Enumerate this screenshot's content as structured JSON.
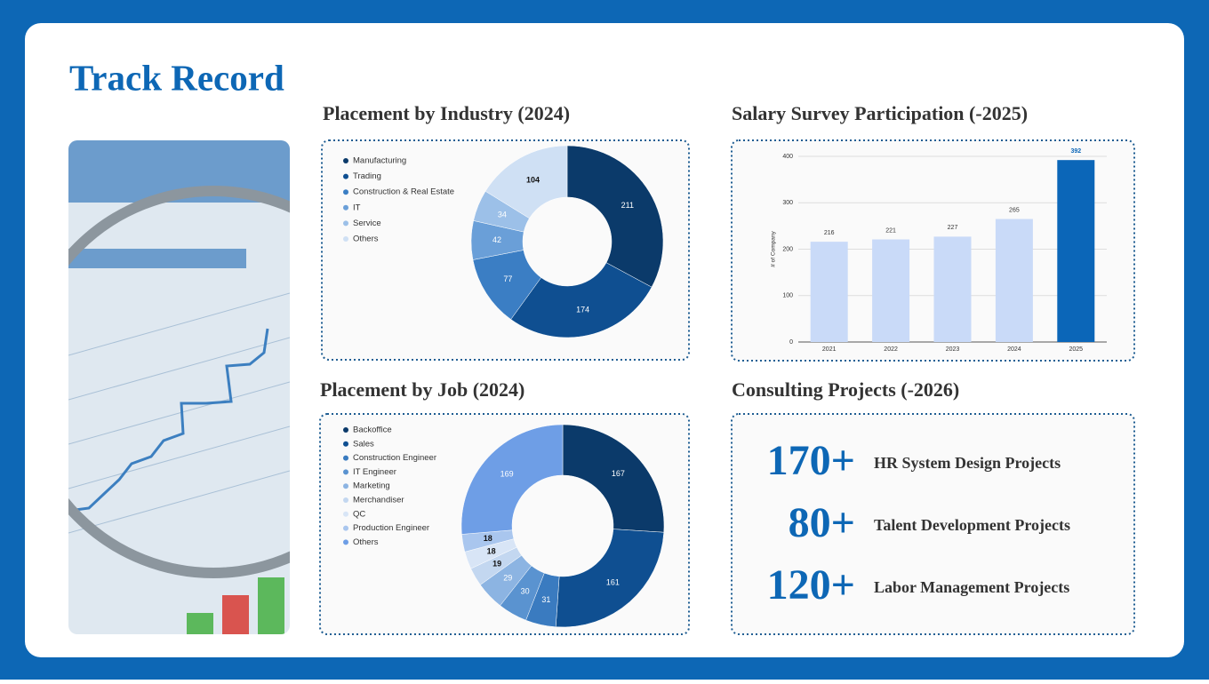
{
  "title": "Track Record",
  "chart_data": [
    {
      "type": "pie",
      "title": "Placement by Industry (2024)",
      "categories": [
        "Manufacturing",
        "Trading",
        "Construction & Real Estate",
        "IT",
        "Service",
        "Others"
      ],
      "values": [
        211,
        174,
        77,
        42,
        34,
        104
      ],
      "colors": [
        "#0b3a6a",
        "#0f4f91",
        "#3b7ec4",
        "#6a9fd8",
        "#9cc0e8",
        "#cfe0f4"
      ]
    },
    {
      "type": "pie",
      "title": "Placement by Job (2024)",
      "categories": [
        "Backoffice",
        "Sales",
        "Construction Engineer",
        "IT Engineer",
        "Marketing",
        "Merchandiser",
        "QC",
        "Production Engineer",
        "Others"
      ],
      "values": [
        167,
        161,
        31,
        30,
        29,
        19,
        18,
        18,
        169
      ],
      "colors": [
        "#0b3a6a",
        "#0f4f91",
        "#3a7bc0",
        "#5a93d0",
        "#8cb4e2",
        "#c3d7f0",
        "#d8e5f6",
        "#a9c6ee",
        "#6e9ee6"
      ]
    },
    {
      "type": "bar",
      "title": "Salary Survey Participation (-2025)",
      "categories": [
        "2021",
        "2022",
        "2023",
        "2024",
        "2025"
      ],
      "values": [
        216,
        221,
        227,
        265,
        392
      ],
      "colors": [
        "#c9daf8",
        "#c9daf8",
        "#c9daf8",
        "#c9daf8",
        "#0b66b8"
      ],
      "y_label": "# of Company",
      "ylim": [
        0,
        400
      ],
      "yticks": [
        0,
        100,
        200,
        300,
        400
      ],
      "grid": true
    }
  ],
  "consulting": {
    "title": "Consulting Projects (-2026)",
    "items": [
      {
        "count": "170+",
        "label": "HR System Design Projects"
      },
      {
        "count": "80+",
        "label": "Talent Development Projects"
      },
      {
        "count": "120+",
        "label": "Labor Management Projects"
      }
    ]
  }
}
